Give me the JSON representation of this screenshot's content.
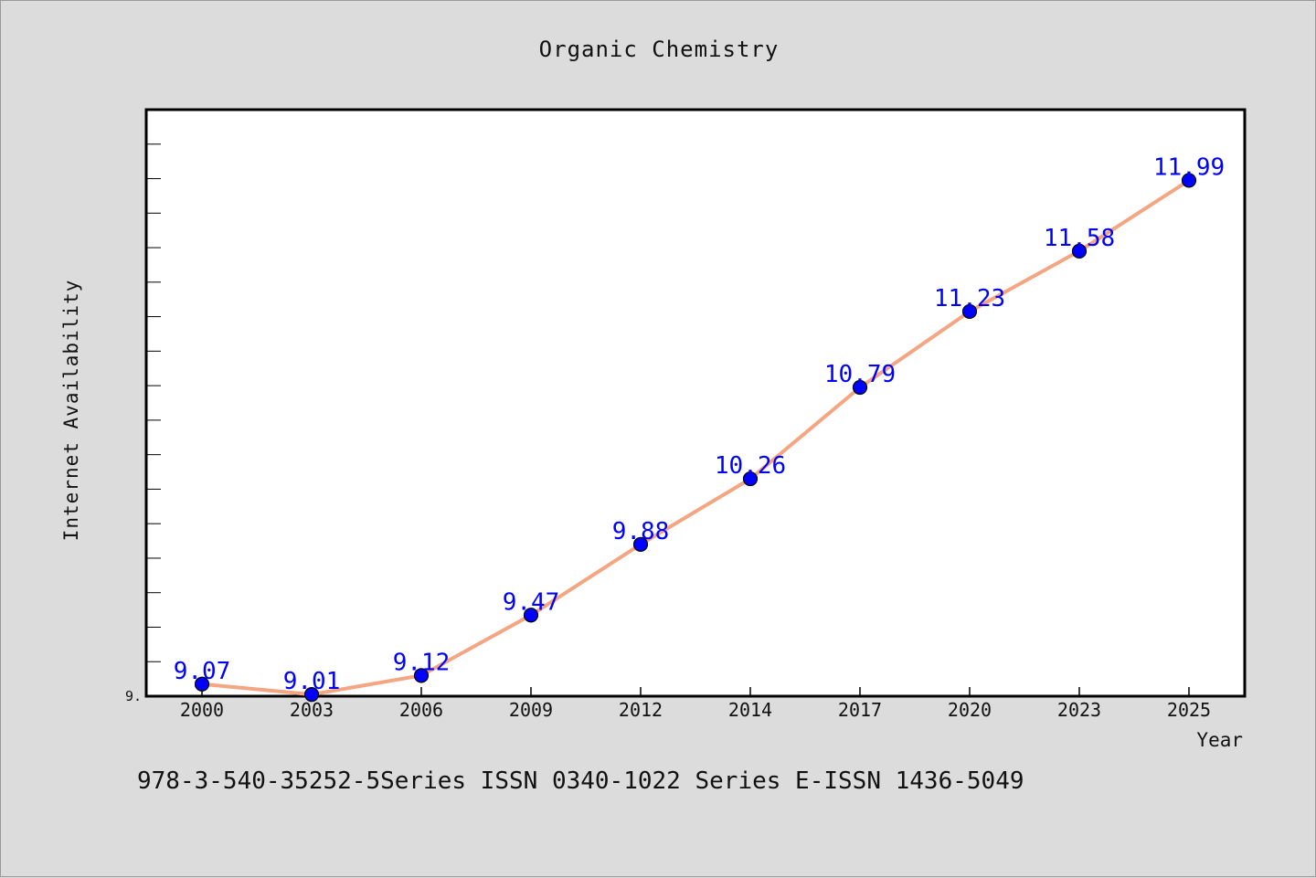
{
  "chart_data": {
    "type": "line",
    "title": "Organic Chemistry",
    "xlabel": "Year",
    "ylabel": "Internet Availability",
    "categories": [
      "2000",
      "2003",
      "2006",
      "2009",
      "2012",
      "2014",
      "2017",
      "2020",
      "2023",
      "2025"
    ],
    "series": [
      {
        "values": [
          9.07,
          9.01,
          9.12,
          9.47,
          9.88,
          10.26,
          10.79,
          11.23,
          11.58,
          11.99
        ],
        "data_labels": [
          "9.07",
          "9.01",
          "9.12",
          "9.47",
          "9.88",
          "10.26",
          "10.79",
          "11.23",
          "11.58",
          "11.99"
        ],
        "line_color": "#f4a582",
        "marker_color": "#0000ff"
      }
    ],
    "ylim": [
      9.0,
      12.4
    ],
    "y_tick_label": "9.",
    "grid": false,
    "legend": "none",
    "background_color": "#dcdcdc",
    "plot_background_color": "#ffffff"
  },
  "footer": {
    "text": "978-3-540-35252-5Series ISSN 0340-1022 Series E-ISSN 1436-5049"
  }
}
